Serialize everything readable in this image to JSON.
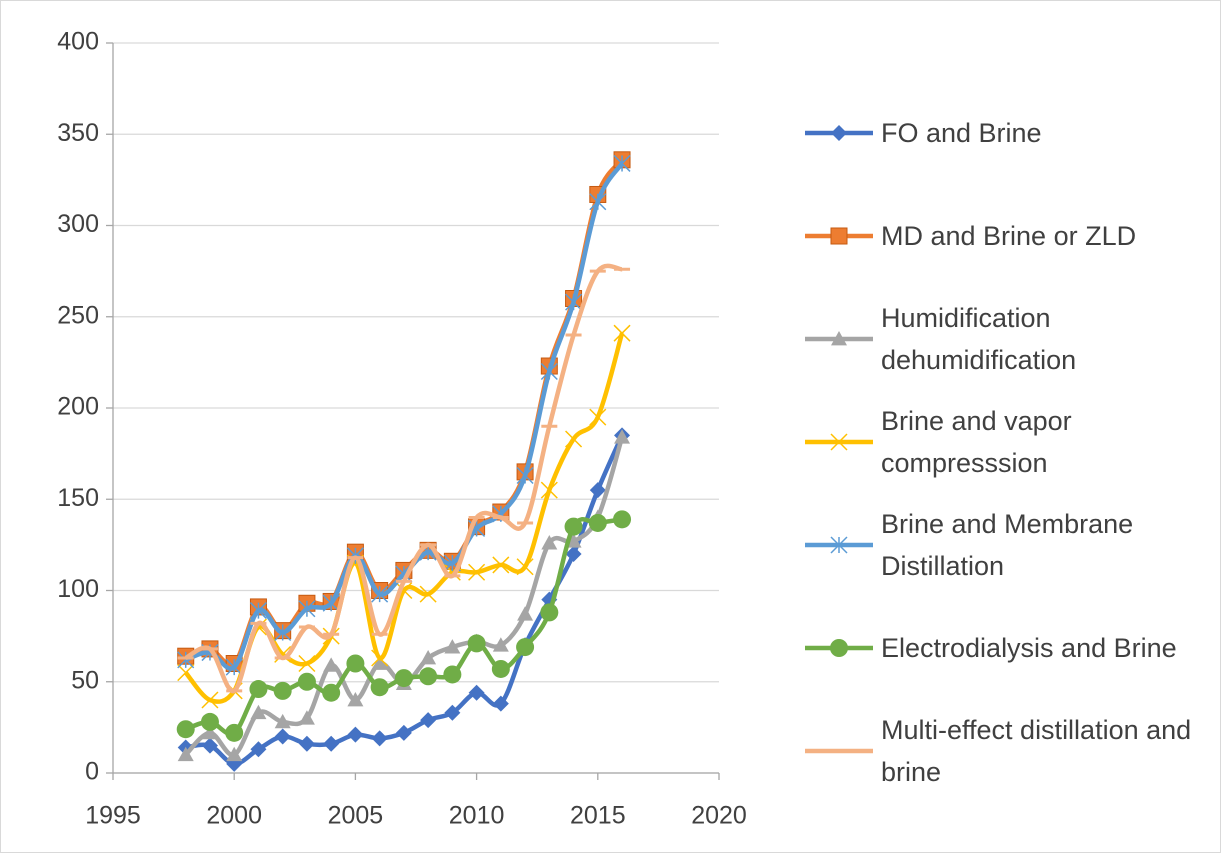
{
  "chart_data": {
    "type": "line",
    "smooth": true,
    "x": [
      1998,
      1999,
      2000,
      2001,
      2002,
      2003,
      2004,
      2005,
      2006,
      2007,
      2008,
      2009,
      2010,
      2011,
      2012,
      2013,
      2014,
      2015,
      2016
    ],
    "xlim": [
      1995,
      2020
    ],
    "xticks": [
      1995,
      2000,
      2005,
      2010,
      2015,
      2020
    ],
    "ylim": [
      0,
      400
    ],
    "yticks": [
      0,
      50,
      100,
      150,
      200,
      250,
      300,
      350,
      400
    ],
    "grid": true,
    "legend": "right",
    "series": [
      {
        "name": "FO and Brine",
        "color": "#4472c4",
        "marker": "diamond",
        "values": [
          14,
          15,
          5,
          13,
          20,
          16,
          16,
          21,
          19,
          22,
          29,
          33,
          44,
          38,
          70,
          95,
          120,
          155,
          185
        ]
      },
      {
        "name": "MD and Brine or ZLD",
        "color": "#ed7d31",
        "marker": "square",
        "values": [
          64,
          68,
          60,
          91,
          78,
          93,
          94,
          121,
          100,
          111,
          122,
          116,
          135,
          143,
          165,
          223,
          260,
          317,
          336
        ]
      },
      {
        "name": "Humidification dehumidification",
        "color": "#a5a5a5",
        "marker": "triangle",
        "values": [
          10,
          22,
          10,
          33,
          28,
          30,
          59,
          40,
          60,
          49,
          63,
          69,
          72,
          70,
          87,
          126,
          127,
          140,
          184
        ]
      },
      {
        "name": "Brine and vapor compresssion",
        "color": "#ffc000",
        "marker": "x",
        "values": [
          55,
          40,
          45,
          80,
          65,
          60,
          75,
          115,
          63,
          100,
          98,
          110,
          110,
          114,
          113,
          155,
          183,
          195,
          241
        ]
      },
      {
        "name": "Brine and Membrane Distillation",
        "color": "#5b9bd5",
        "marker": "star",
        "values": [
          62,
          66,
          58,
          89,
          77,
          90,
          93,
          119,
          98,
          109,
          121,
          115,
          134,
          142,
          163,
          220,
          258,
          313,
          334
        ]
      },
      {
        "name": "Electrodialysis and Brine",
        "color": "#70ad47",
        "marker": "circle",
        "values": [
          24,
          28,
          22,
          46,
          45,
          50,
          44,
          60,
          47,
          52,
          53,
          54,
          71,
          57,
          69,
          88,
          135,
          137,
          139
        ]
      },
      {
        "name": "Multi-effect distillation and brine",
        "color": "#f4b183",
        "marker": "dash",
        "values": [
          63,
          68,
          45,
          82,
          63,
          80,
          76,
          118,
          76,
          105,
          125,
          108,
          140,
          140,
          137,
          190,
          240,
          275,
          276
        ]
      }
    ]
  }
}
